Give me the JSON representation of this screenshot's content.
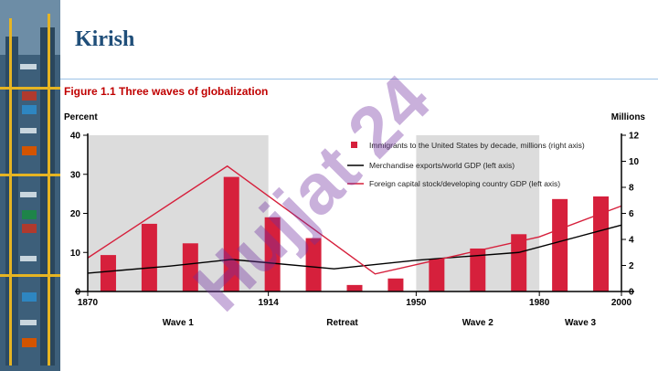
{
  "slide": {
    "title": "Kirish",
    "watermark": "Hujjat 24"
  },
  "colors": {
    "bar": "#d6203c",
    "line_black": "#000000",
    "line_red": "#d6203c",
    "shade": "#dcdcdc",
    "title_blue": "#1f4e79",
    "fig_red": "#c00000"
  },
  "chart_data": {
    "type": "bar",
    "figure_title": "Figure 1.1   Three waves of globalization",
    "ylabel_left": "Percent",
    "ylabel_right": "Millions",
    "ylim_left": [
      0,
      40
    ],
    "ylim_right": [
      0,
      12
    ],
    "xlim": [
      1870,
      2000
    ],
    "yticks_left": [
      "0",
      "10",
      "20",
      "30",
      "40"
    ],
    "yticks_right": [
      "0",
      "2",
      "4",
      "6",
      "8",
      "10",
      "12"
    ],
    "xticks": [
      {
        "year": 1870,
        "label": "1870"
      },
      {
        "year": 1914,
        "label": "1914"
      },
      {
        "year": 1950,
        "label": "1950"
      },
      {
        "year": 1980,
        "label": "1980"
      },
      {
        "year": 2000,
        "label": "2000"
      }
    ],
    "shaded_periods": [
      [
        1870,
        1914
      ],
      [
        1950,
        1980
      ]
    ],
    "period_labels": [
      {
        "label": "Wave 1",
        "year": 1892
      },
      {
        "label": "Retreat",
        "year": 1932
      },
      {
        "label": "Wave 2",
        "year": 1965
      },
      {
        "label": "Wave 3",
        "year": 1990
      }
    ],
    "legend": {
      "bars": "Immigrants to the United States by decade, millions (right axis)",
      "black": "Merchandise exports/world GDP (left axis)",
      "red": "Foreign capital stock/developing country GDP  (left axis)"
    },
    "bars": {
      "axis": "right",
      "x": [
        1875,
        1885,
        1895,
        1905,
        1915,
        1925,
        1935,
        1945,
        1955,
        1965,
        1975,
        1985,
        1995
      ],
      "values": [
        2.8,
        5.2,
        3.7,
        8.8,
        5.7,
        4.1,
        0.5,
        1.0,
        2.5,
        3.3,
        4.4,
        7.1,
        7.3
      ]
    },
    "series": [
      {
        "name": "Merchandise exports/world GDP",
        "axis": "left",
        "color": "#000000",
        "x": [
          1870,
          1890,
          1905,
          1930,
          1950,
          1975,
          2000
        ],
        "values": [
          4.7,
          6.5,
          8.2,
          5.8,
          8.0,
          10.0,
          17.0
        ]
      },
      {
        "name": "Foreign capital stock/developing country GDP",
        "axis": "left",
        "color": "#d6203c",
        "x": [
          1870,
          1904,
          1940,
          1980,
          2000
        ],
        "values": [
          8.6,
          32.1,
          4.5,
          14.0,
          21.9
        ]
      }
    ]
  }
}
